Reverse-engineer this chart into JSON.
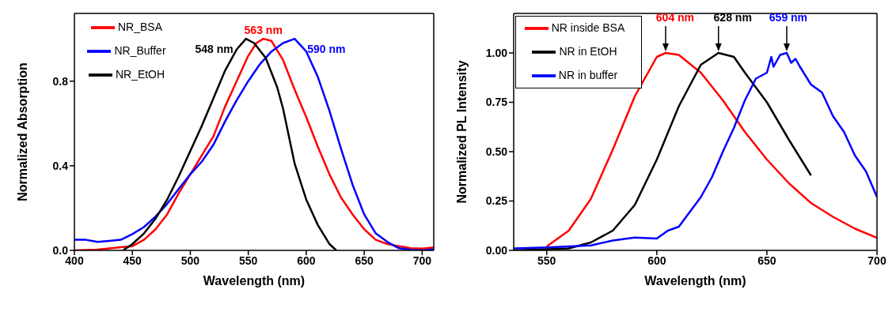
{
  "chart_data": [
    {
      "type": "line",
      "xlabel": "Wavelength (nm)",
      "ylabel": "Normalized Absorption",
      "xlim": [
        400,
        710
      ],
      "xticks": [
        400,
        450,
        500,
        550,
        600,
        650,
        700
      ],
      "ylim": [
        0,
        1.12
      ],
      "yticks": [
        {
          "value": 0,
          "label": "0.0"
        },
        0.4,
        0.8
      ],
      "legend": "top left",
      "grid": false,
      "line_style": "solid",
      "marker": "none",
      "series": [
        {
          "name": "NR_BSA",
          "color": "#ff0000",
          "x": [
            400,
            420,
            440,
            450,
            460,
            470,
            480,
            490,
            500,
            510,
            520,
            530,
            540,
            550,
            557,
            563,
            570,
            580,
            590,
            600,
            610,
            620,
            630,
            640,
            650,
            660,
            670,
            680,
            690,
            700,
            710
          ],
          "values": [
            0,
            0.004,
            0.015,
            0.02,
            0.05,
            0.1,
            0.17,
            0.27,
            0.36,
            0.45,
            0.54,
            0.68,
            0.8,
            0.92,
            0.98,
            1.0,
            0.99,
            0.9,
            0.76,
            0.63,
            0.49,
            0.36,
            0.25,
            0.17,
            0.1,
            0.05,
            0.03,
            0.02,
            0.01,
            0.008,
            0.014
          ]
        },
        {
          "name": "NR_Buffer",
          "color": "#0000ff",
          "x": [
            400,
            410,
            420,
            430,
            440,
            450,
            460,
            470,
            480,
            490,
            500,
            510,
            520,
            530,
            540,
            550,
            560,
            570,
            580,
            590,
            600,
            610,
            620,
            630,
            640,
            650,
            660,
            670,
            680,
            690,
            700,
            710
          ],
          "values": [
            0.05,
            0.05,
            0.04,
            0.045,
            0.05,
            0.077,
            0.11,
            0.16,
            0.22,
            0.29,
            0.36,
            0.42,
            0.5,
            0.61,
            0.71,
            0.8,
            0.88,
            0.94,
            0.98,
            1.0,
            0.94,
            0.82,
            0.66,
            0.48,
            0.31,
            0.17,
            0.08,
            0.04,
            0.01,
            0.003,
            0,
            0.005
          ]
        },
        {
          "name": "NR_EtOH",
          "color": "#000000",
          "x": [
            442,
            450,
            460,
            470,
            480,
            490,
            500,
            510,
            520,
            530,
            540,
            548,
            555,
            565,
            575,
            580,
            590,
            600,
            610,
            620,
            626
          ],
          "values": [
            0,
            0.03,
            0.08,
            0.15,
            0.24,
            0.35,
            0.47,
            0.59,
            0.72,
            0.85,
            0.95,
            1.0,
            0.98,
            0.91,
            0.77,
            0.67,
            0.41,
            0.24,
            0.12,
            0.03,
            0
          ]
        }
      ],
      "annotations": [
        {
          "text": "563 nm",
          "x": 563,
          "y": 1.0
        },
        {
          "text": "590 nm",
          "x": 590,
          "y": 1.0
        },
        {
          "text": "548 nm",
          "x": 548,
          "y": 1.0
        }
      ]
    },
    {
      "type": "line",
      "xlabel": "Wavelength (nm)",
      "ylabel": "Normalized PL Intensity",
      "xlim": [
        535,
        700
      ],
      "xticks": [
        550,
        600,
        650,
        700
      ],
      "ylim": [
        0,
        1.2
      ],
      "yticks": [
        {
          "value": 0,
          "label": "0.00"
        },
        0.25,
        {
          "value": 0.5,
          "label": "0.50"
        },
        0.75,
        {
          "value": 1,
          "label": "1.00"
        }
      ],
      "legend": "top left",
      "grid": false,
      "line_style": "solid",
      "marker": "none",
      "series": [
        {
          "name": "NR inside BSA",
          "color": "#ff0000",
          "x": [
            550,
            560,
            570,
            580,
            590,
            600,
            604,
            610,
            620,
            630,
            640,
            650,
            660,
            670,
            680,
            690,
            700
          ],
          "values": [
            0.02,
            0.1,
            0.26,
            0.51,
            0.78,
            0.98,
            1.0,
            0.99,
            0.9,
            0.76,
            0.6,
            0.46,
            0.34,
            0.24,
            0.17,
            0.11,
            0.064
          ]
        },
        {
          "name": "NR in EtOH",
          "color": "#000000",
          "x": [
            535,
            560,
            570,
            580,
            590,
            600,
            610,
            620,
            628,
            635,
            640,
            650,
            660,
            670
          ],
          "values": [
            0,
            0.01,
            0.04,
            0.1,
            0.23,
            0.46,
            0.73,
            0.94,
            1.0,
            0.98,
            0.9,
            0.75,
            0.56,
            0.38
          ]
        },
        {
          "name": "NR in buffer",
          "color": "#0000ff",
          "x": [
            535,
            550,
            560,
            570,
            580,
            590,
            600,
            605,
            610,
            620,
            625,
            630,
            635,
            640,
            645,
            650,
            652,
            653,
            656,
            659,
            661,
            663,
            665,
            670,
            675,
            680,
            685,
            690,
            695,
            700
          ],
          "values": [
            0.01,
            0.015,
            0.02,
            0.025,
            0.05,
            0.065,
            0.06,
            0.1,
            0.12,
            0.27,
            0.37,
            0.5,
            0.62,
            0.76,
            0.87,
            0.9,
            0.98,
            0.93,
            0.99,
            1.0,
            0.95,
            0.97,
            0.93,
            0.84,
            0.8,
            0.68,
            0.6,
            0.48,
            0.4,
            0.27
          ]
        }
      ],
      "annotations": [
        {
          "text": "604 nm",
          "x": 604,
          "y": 1.0
        },
        {
          "text": "628 nm",
          "x": 628,
          "y": 1.0
        },
        {
          "text": "659 nm",
          "x": 659,
          "y": 1.0
        }
      ]
    }
  ]
}
